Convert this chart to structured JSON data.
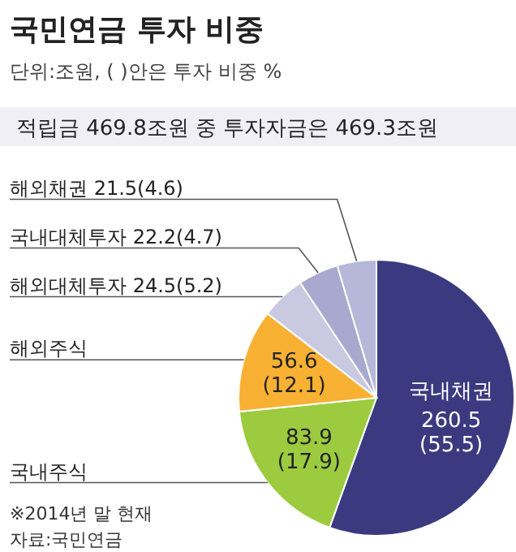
{
  "chart_data": {
    "type": "pie",
    "title": "국민연금 투자 비중",
    "subtitle": "단위:조원, ( )안은 투자 비중 %",
    "categories": [
      "국내채권",
      "국내주식",
      "해외주식",
      "해외대체투자",
      "국내대체투자",
      "해외채권"
    ],
    "values": [
      260.5,
      83.9,
      56.6,
      24.5,
      22.2,
      21.5
    ],
    "value_labels": [
      "260.5 (55.5)",
      "83.9 (17.9)",
      "56.6 (12.1)",
      "24.5(5.2)",
      "22.2(4.7)",
      "21.5(4.6)"
    ],
    "colors": [
      "#3b3a80",
      "#9ccb3f",
      "#f8b133",
      "#c9c9e2",
      "#a9a9cf",
      "#b7b7d9"
    ],
    "annotations": [
      "적립금 469.8조원 중 투자자금은 469.3조원",
      "※2014년 말 현재",
      "자료:국민연금"
    ]
  }
}
